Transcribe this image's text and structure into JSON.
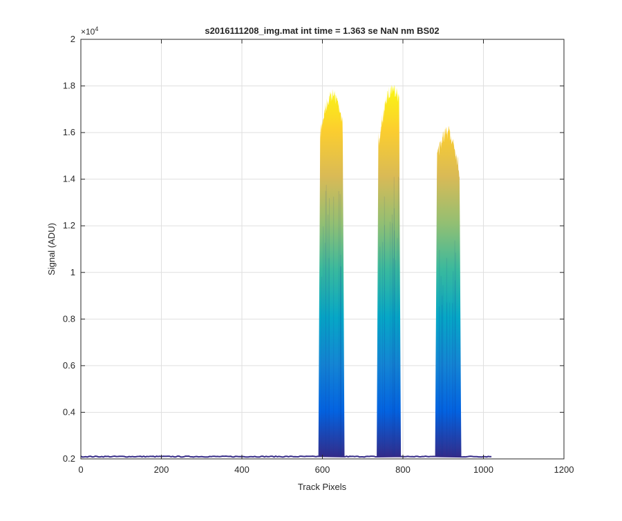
{
  "chart_data": {
    "type": "area",
    "title": "s2016111208_img.mat int time = 1.363 se  NaN nm BS02",
    "xlabel": "Track Pixels",
    "ylabel": "Signal (ADU)",
    "xlim": [
      0,
      1200
    ],
    "ylim": [
      2000,
      20000
    ],
    "x_ticks": [
      0,
      200,
      400,
      600,
      800,
      1000,
      1200
    ],
    "x_tick_labels": [
      "0",
      "200",
      "400",
      "600",
      "800",
      "1000",
      "1200"
    ],
    "y_ticks": [
      2000,
      4000,
      6000,
      8000,
      10000,
      12000,
      14000,
      16000,
      18000,
      20000
    ],
    "y_tick_labels": [
      "0.2",
      "0.4",
      "0.6",
      "0.8",
      "1",
      "1.2",
      "1.4",
      "1.6",
      "1.8",
      "2"
    ],
    "y_exponent_base": "×10",
    "y_exponent_power": "4",
    "grid": true,
    "baseline": {
      "x_range": [
        0,
        1020
      ],
      "value": 2100
    },
    "bands": [
      {
        "x_range": [
          590,
          655
        ],
        "peak_x": 625,
        "peak": 17900,
        "shoulder": 16300
      },
      {
        "x_range": [
          735,
          795
        ],
        "peak_x": 775,
        "peak": 18200,
        "shoulder": 16700
      },
      {
        "x_range": [
          880,
          945
        ],
        "peak_x": 910,
        "peak": 16300,
        "shoulder": 14700
      }
    ],
    "colormap": [
      "#352a87",
      "#0363e1",
      "#1485d4",
      "#06a7c6",
      "#38b99e",
      "#92bf73",
      "#d9ba56",
      "#fcce2e",
      "#f9fb0e"
    ]
  }
}
